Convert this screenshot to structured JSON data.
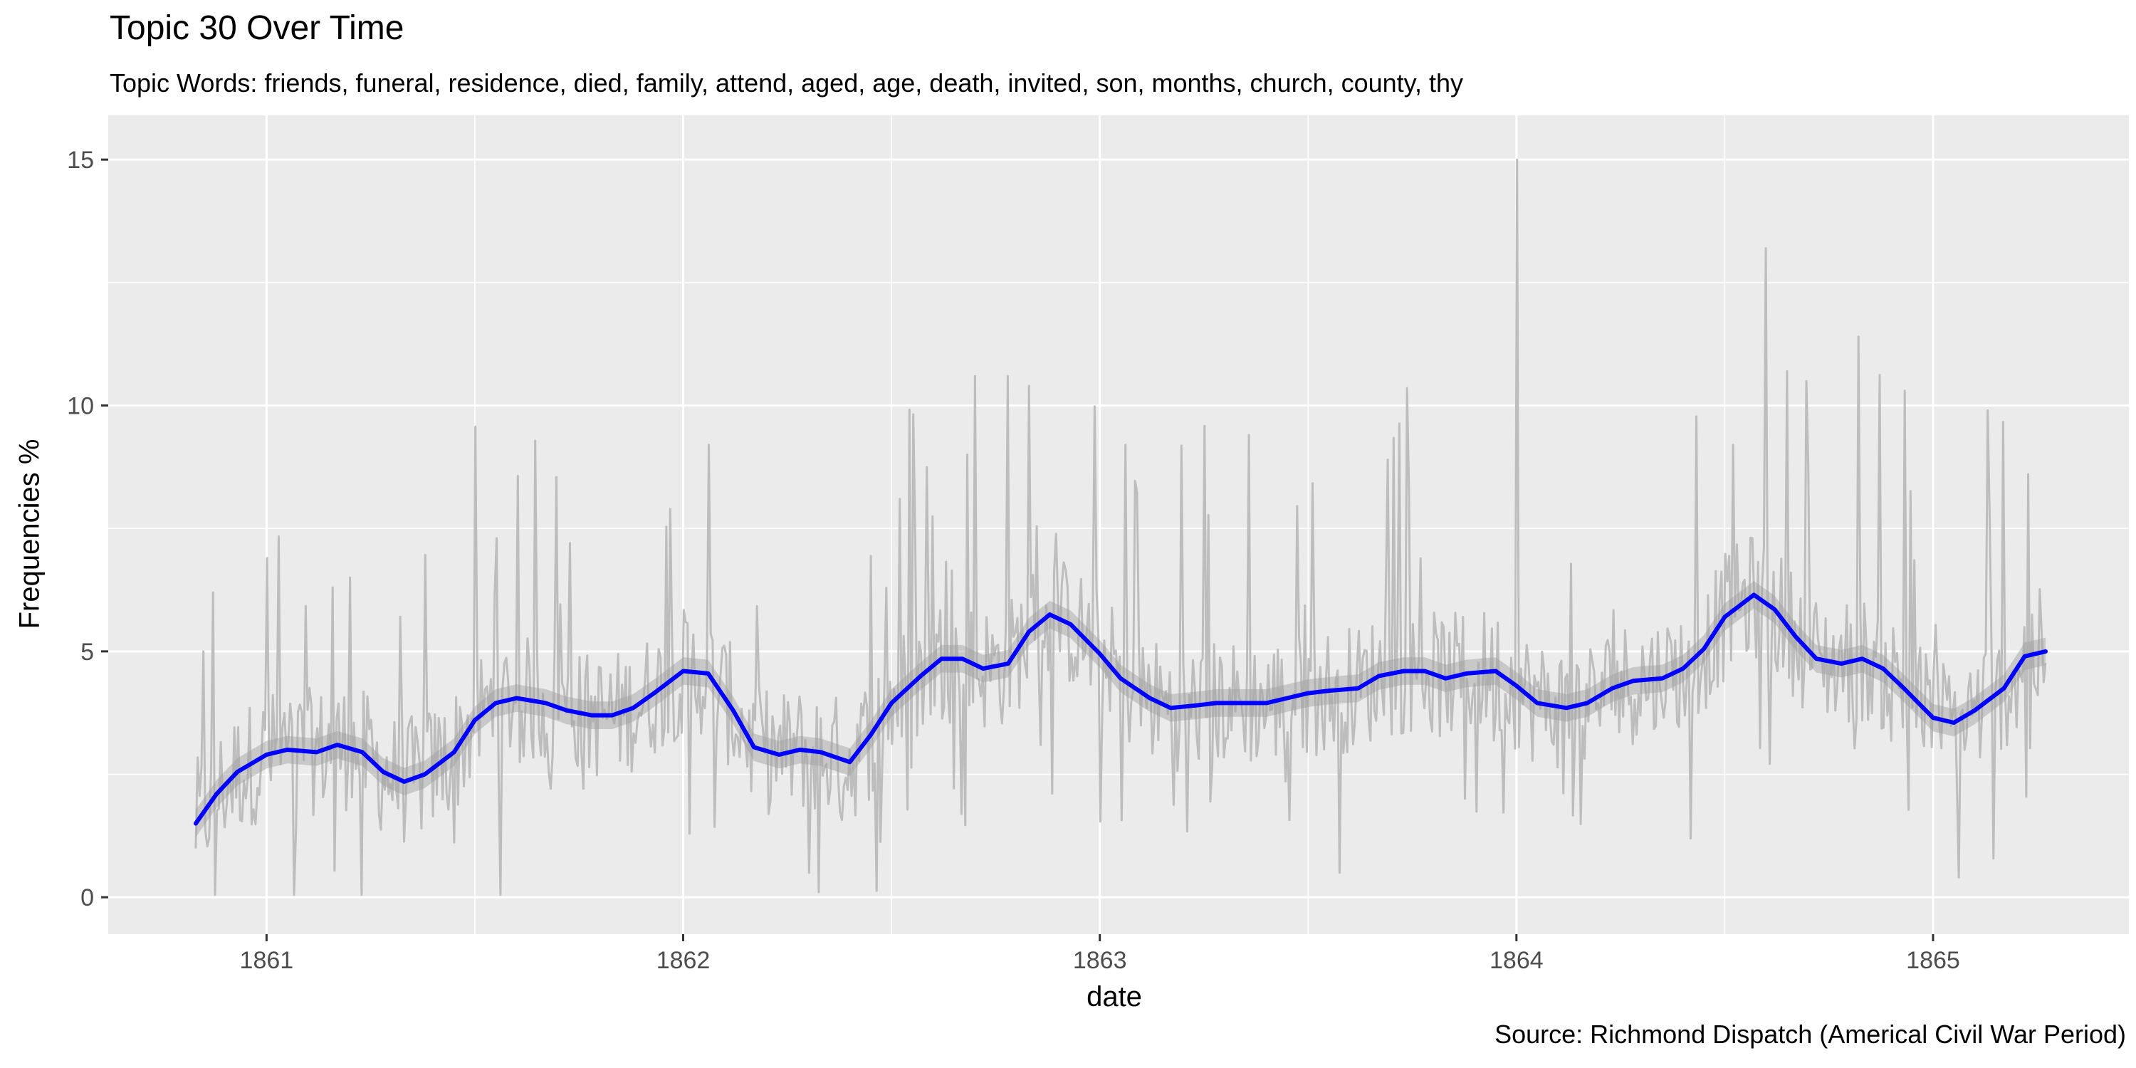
{
  "chart_data": {
    "type": "line",
    "title": "Topic 30 Over Time",
    "subtitle": "Topic Words: friends, funeral, residence, died, family, attend, aged, age, death, invited, son, months, church, county, thy",
    "caption": "Source: Richmond Dispatch (Americal Civil War Period)",
    "xlabel": "date",
    "ylabel": "Frequencies %",
    "xlim": [
      1860.62,
      1865.47
    ],
    "ylim": [
      -0.75,
      15.9
    ],
    "x_ticks": [
      {
        "value": 1861,
        "label": "1861"
      },
      {
        "value": 1862,
        "label": "1862"
      },
      {
        "value": 1863,
        "label": "1863"
      },
      {
        "value": 1864,
        "label": "1864"
      },
      {
        "value": 1865,
        "label": "1865"
      }
    ],
    "y_ticks": [
      {
        "value": 0,
        "label": "0"
      },
      {
        "value": 5,
        "label": "5"
      },
      {
        "value": 10,
        "label": "10"
      },
      {
        "value": 15,
        "label": "15"
      }
    ],
    "grid": true,
    "colors": {
      "panel": "#ebebeb",
      "grid": "#ffffff",
      "raw_series": "#bdbdbd",
      "ribbon": "#9e9e9e",
      "smooth": "#0000ff"
    },
    "series": [
      {
        "role": "smoothed",
        "x": [
          1860.83,
          1860.88,
          1860.93,
          1861.0,
          1861.05,
          1861.12,
          1861.17,
          1861.23,
          1861.28,
          1861.33,
          1861.38,
          1861.45,
          1861.5,
          1861.55,
          1861.6,
          1861.67,
          1861.72,
          1861.78,
          1861.83,
          1861.88,
          1861.93,
          1862.0,
          1862.06,
          1862.12,
          1862.17,
          1862.23,
          1862.28,
          1862.33,
          1862.4,
          1862.45,
          1862.5,
          1862.57,
          1862.62,
          1862.67,
          1862.72,
          1862.78,
          1862.83,
          1862.88,
          1862.93,
          1863.0,
          1863.05,
          1863.12,
          1863.17,
          1863.23,
          1863.28,
          1863.33,
          1863.4,
          1863.45,
          1863.5,
          1863.55,
          1863.62,
          1863.67,
          1863.73,
          1863.78,
          1863.83,
          1863.88,
          1863.95,
          1864.0,
          1864.05,
          1864.12,
          1864.17,
          1864.23,
          1864.28,
          1864.35,
          1864.4,
          1864.45,
          1864.5,
          1864.57,
          1864.62,
          1864.67,
          1864.72,
          1864.78,
          1864.83,
          1864.88,
          1864.93,
          1865.0,
          1865.05,
          1865.1,
          1865.17,
          1865.22,
          1865.27
        ],
        "values": [
          1.5,
          2.1,
          2.55,
          2.9,
          3.0,
          2.95,
          3.1,
          2.95,
          2.55,
          2.35,
          2.5,
          2.95,
          3.6,
          3.95,
          4.05,
          3.95,
          3.8,
          3.7,
          3.7,
          3.85,
          4.15,
          4.6,
          4.55,
          3.8,
          3.05,
          2.9,
          3.0,
          2.95,
          2.75,
          3.3,
          3.95,
          4.5,
          4.85,
          4.85,
          4.65,
          4.75,
          5.4,
          5.75,
          5.55,
          4.95,
          4.45,
          4.05,
          3.85,
          3.9,
          3.95,
          3.95,
          3.95,
          4.05,
          4.15,
          4.2,
          4.25,
          4.5,
          4.6,
          4.6,
          4.45,
          4.55,
          4.6,
          4.3,
          3.95,
          3.85,
          3.95,
          4.25,
          4.4,
          4.45,
          4.65,
          5.05,
          5.7,
          6.15,
          5.85,
          5.3,
          4.85,
          4.75,
          4.85,
          4.65,
          4.25,
          3.65,
          3.55,
          3.8,
          4.25,
          4.9,
          5.0
        ],
        "band": 0.28
      },
      {
        "role": "raw",
        "x_start": 1860.83,
        "x_end": 1865.27,
        "points": 960,
        "spikes": [
          {
            "x": 1860.85,
            "y": 5.0
          },
          {
            "x": 1860.87,
            "y": 6.2
          },
          {
            "x": 1861.16,
            "y": 6.3
          },
          {
            "x": 1861.2,
            "y": 6.5
          },
          {
            "x": 1861.55,
            "y": 7.3
          },
          {
            "x": 1861.73,
            "y": 7.2
          },
          {
            "x": 1861.97,
            "y": 7.9
          },
          {
            "x": 1862.06,
            "y": 9.2
          },
          {
            "x": 1862.52,
            "y": 8.1
          },
          {
            "x": 1862.68,
            "y": 9.0
          },
          {
            "x": 1862.7,
            "y": 10.6
          },
          {
            "x": 1862.78,
            "y": 10.6
          },
          {
            "x": 1862.83,
            "y": 10.4
          },
          {
            "x": 1863.06,
            "y": 9.2
          },
          {
            "x": 1863.36,
            "y": 9.4
          },
          {
            "x": 1863.69,
            "y": 8.9
          },
          {
            "x": 1864.0,
            "y": 15.0
          },
          {
            "x": 1864.52,
            "y": 9.2
          },
          {
            "x": 1864.6,
            "y": 13.2
          },
          {
            "x": 1864.65,
            "y": 10.7
          },
          {
            "x": 1864.82,
            "y": 11.4
          },
          {
            "x": 1864.93,
            "y": 10.3
          },
          {
            "x": 1865.13,
            "y": 9.9
          },
          {
            "x": 1865.23,
            "y": 8.6
          }
        ]
      }
    ]
  }
}
